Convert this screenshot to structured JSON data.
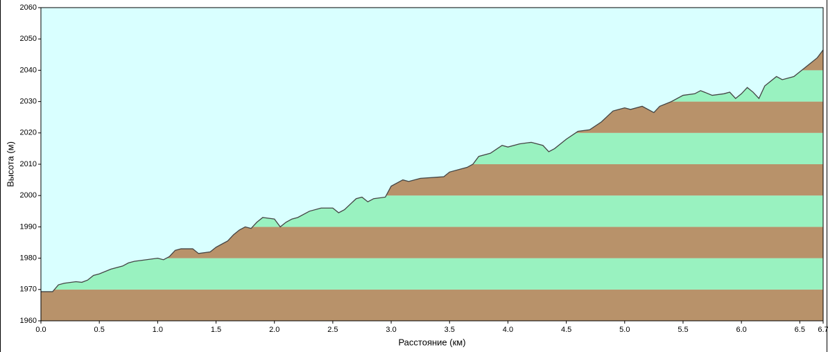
{
  "chart_data": {
    "type": "area",
    "x_label": "Расстояние  (км)",
    "y_label": "Высота (м)",
    "x": [
      0,
      0.1,
      0.15,
      0.2,
      0.3,
      0.35,
      0.4,
      0.45,
      0.5,
      0.6,
      0.7,
      0.75,
      0.8,
      0.9,
      1.0,
      1.05,
      1.1,
      1.15,
      1.2,
      1.3,
      1.35,
      1.45,
      1.5,
      1.55,
      1.6,
      1.65,
      1.7,
      1.75,
      1.8,
      1.85,
      1.9,
      2.0,
      2.05,
      2.1,
      2.15,
      2.2,
      2.3,
      2.4,
      2.5,
      2.55,
      2.6,
      2.7,
      2.75,
      2.8,
      2.85,
      2.95,
      3.0,
      3.1,
      3.15,
      3.25,
      3.45,
      3.5,
      3.6,
      3.65,
      3.7,
      3.75,
      3.85,
      3.95,
      4.0,
      4.1,
      4.2,
      4.3,
      4.35,
      4.4,
      4.5,
      4.6,
      4.7,
      4.8,
      4.9,
      5.0,
      5.05,
      5.15,
      5.25,
      5.3,
      5.4,
      5.5,
      5.6,
      5.65,
      5.75,
      5.85,
      5.9,
      5.95,
      6.0,
      6.05,
      6.1,
      6.15,
      6.2,
      6.3,
      6.35,
      6.45,
      6.55,
      6.65,
      6.7
    ],
    "values": [
      1969.3,
      1969.3,
      1971.5,
      1972,
      1972.5,
      1972.3,
      1973,
      1974.5,
      1975,
      1976.5,
      1977.5,
      1978.5,
      1979,
      1979.5,
      1980,
      1979.5,
      1980.5,
      1982.5,
      1983,
      1983,
      1981.5,
      1982,
      1983.5,
      1984.5,
      1985.5,
      1987.5,
      1989,
      1990,
      1989.5,
      1991.5,
      1993,
      1992.5,
      1990,
      1991.5,
      1992.5,
      1993,
      1995,
      1996,
      1996,
      1994.5,
      1995.5,
      1999,
      1999.5,
      1998,
      1999,
      1999.5,
      2003,
      2005,
      2004.5,
      2005.5,
      2006,
      2007.5,
      2008.5,
      2009,
      2010,
      2012.5,
      2013.5,
      2016,
      2015.5,
      2016.5,
      2017,
      2016,
      2014,
      2015,
      2018,
      2020.5,
      2021,
      2023.5,
      2027,
      2028,
      2027.5,
      2028.5,
      2026.5,
      2028.5,
      2030,
      2032,
      2032.5,
      2033.5,
      2032,
      2032.5,
      2033,
      2031,
      2032.5,
      2034.5,
      2033,
      2031,
      2035,
      2038,
      2037,
      2038,
      2041,
      2044,
      2046.5
    ],
    "xlim": [
      0,
      6.7
    ],
    "ylim": [
      1960,
      2060
    ],
    "xticks": [
      {
        "value": 0,
        "label": "0.0"
      },
      0.5,
      {
        "value": 1,
        "label": "1.0"
      },
      1.5,
      {
        "value": 2,
        "label": "2.0"
      },
      2.5,
      {
        "value": 3,
        "label": "3.0"
      },
      3.5,
      {
        "value": 4,
        "label": "4.0"
      },
      4.5,
      {
        "value": 5,
        "label": "5.0"
      },
      5.5,
      {
        "value": 6,
        "label": "6.0"
      },
      6.5,
      6.7
    ],
    "yticks": [
      1960,
      1970,
      1980,
      1990,
      2000,
      2010,
      2020,
      2030,
      2040,
      2050,
      2060
    ],
    "background_color": "#d9ffff",
    "band_colors": [
      "#b8926a",
      "#99f2c0"
    ],
    "line_color": "#444444"
  }
}
